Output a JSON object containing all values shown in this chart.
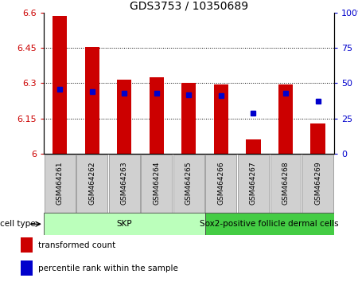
{
  "title": "GDS3753 / 10350689",
  "samples": [
    "GSM464261",
    "GSM464262",
    "GSM464263",
    "GSM464264",
    "GSM464265",
    "GSM464266",
    "GSM464267",
    "GSM464268",
    "GSM464269"
  ],
  "transformed_counts": [
    6.585,
    6.455,
    6.315,
    6.325,
    6.3,
    6.295,
    6.06,
    6.295,
    6.13
  ],
  "percentile_ranks": [
    46,
    44,
    43,
    43,
    42,
    41,
    29,
    43,
    37
  ],
  "ylim_left": [
    6.0,
    6.6
  ],
  "ylim_right": [
    0,
    100
  ],
  "yticks_left": [
    6.0,
    6.15,
    6.3,
    6.45,
    6.6
  ],
  "yticks_right": [
    0,
    25,
    50,
    75,
    100
  ],
  "ytick_labels_left": [
    "6",
    "6.15",
    "6.3",
    "6.45",
    "6.6"
  ],
  "ytick_labels_right": [
    "0",
    "25",
    "50",
    "75",
    "100%"
  ],
  "bar_color": "#cc0000",
  "marker_color": "#0000cc",
  "bar_bottom": 6.0,
  "ct_boundaries": [
    {
      "start": 0,
      "end": 5,
      "label": "SKP",
      "color": "#bbffbb"
    },
    {
      "start": 5,
      "end": 9,
      "label": "Sox2-positive follicle dermal cells",
      "color": "#44cc44"
    }
  ],
  "legend_items": [
    {
      "color": "#cc0000",
      "label": "transformed count"
    },
    {
      "color": "#0000cc",
      "label": "percentile rank within the sample"
    }
  ],
  "grid_color": "black",
  "bar_color_left_axis": "#cc0000",
  "right_axis_color": "#0000cc",
  "sample_box_color": "#d0d0d0"
}
